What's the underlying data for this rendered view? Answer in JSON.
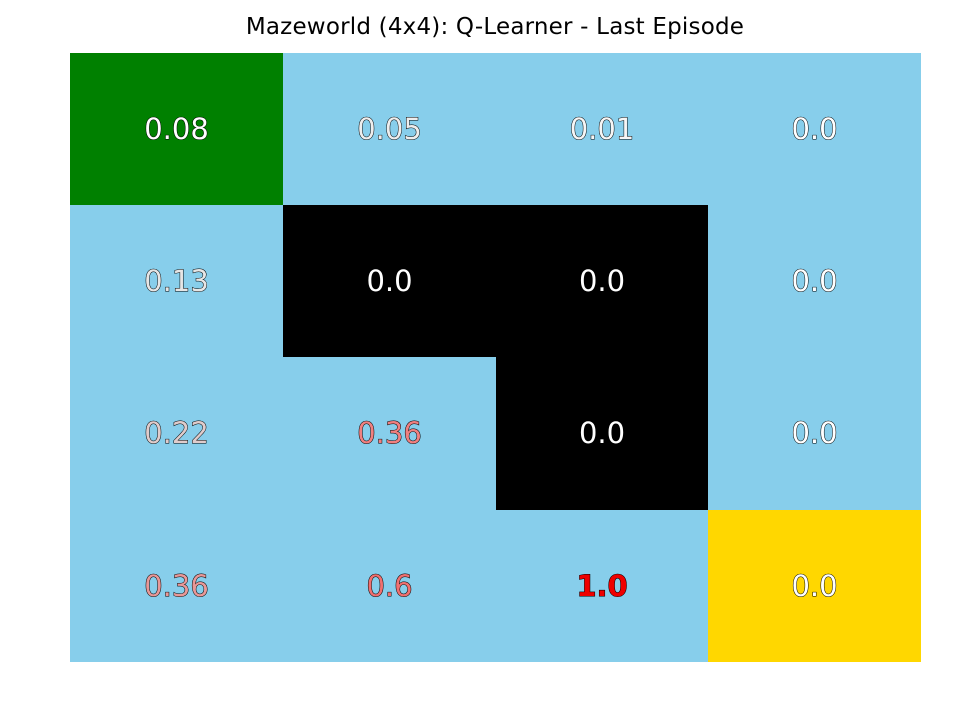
{
  "title": "Mazeworld (4x4): Q-Learner - Last Episode",
  "colors": {
    "open": "#87ceeb",
    "wall": "#000000",
    "start": "#008000",
    "goal": "#ffd700"
  },
  "grid": {
    "rows": 4,
    "cols": 4,
    "cells": [
      {
        "label": "0.08",
        "type": "start",
        "text_color": "#ffffff",
        "bold": false
      },
      {
        "label": "0.05",
        "type": "open",
        "text_color": "#eeeeee",
        "bold": false
      },
      {
        "label": "0.01",
        "type": "open",
        "text_color": "#f6f6f6",
        "bold": false
      },
      {
        "label": "0.0",
        "type": "open",
        "text_color": "#ffffff",
        "bold": false
      },
      {
        "label": "0.13",
        "type": "open",
        "text_color": "#e6e6e6",
        "bold": false
      },
      {
        "label": "0.0",
        "type": "wall",
        "text_color": "#ffffff",
        "bold": false
      },
      {
        "label": "0.0",
        "type": "wall",
        "text_color": "#ffffff",
        "bold": false
      },
      {
        "label": "0.0",
        "type": "open",
        "text_color": "#ffffff",
        "bold": false
      },
      {
        "label": "0.22",
        "type": "open",
        "text_color": "#e0cccc",
        "bold": false
      },
      {
        "label": "0.36",
        "type": "open",
        "text_color": "#f08080",
        "bold": false
      },
      {
        "label": "0.0",
        "type": "wall",
        "text_color": "#ffffff",
        "bold": false
      },
      {
        "label": "0.0",
        "type": "open",
        "text_color": "#ffffff",
        "bold": false
      },
      {
        "label": "0.36",
        "type": "open",
        "text_color": "#e89898",
        "bold": false
      },
      {
        "label": "0.6",
        "type": "open",
        "text_color": "#f07070",
        "bold": false
      },
      {
        "label": "1.0",
        "type": "open",
        "text_color": "#ee0000",
        "bold": true
      },
      {
        "label": "0.0",
        "type": "goal",
        "text_color": "#ffffff",
        "bold": false
      }
    ]
  }
}
